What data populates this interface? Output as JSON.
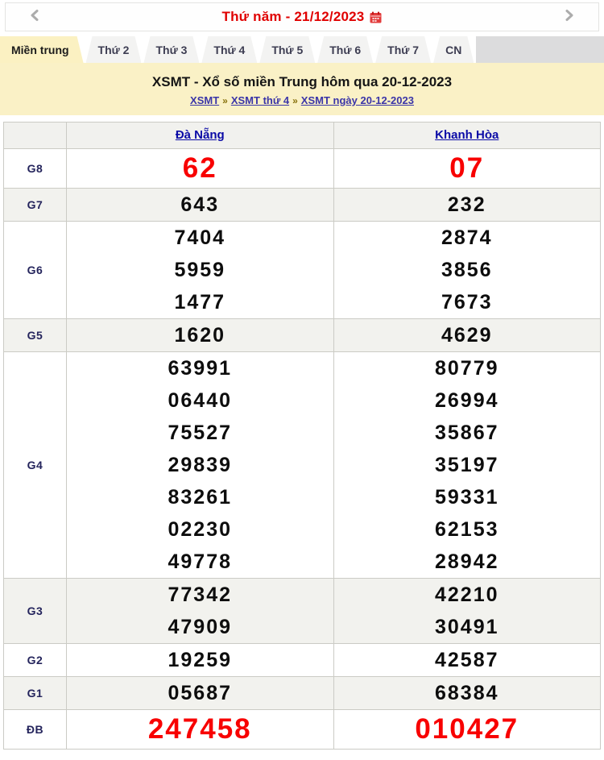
{
  "datebar": {
    "title": "Thứ năm - 21/12/2023",
    "icons": {
      "prev": "chevron-left-icon",
      "next": "chevron-right-icon",
      "calendar": "calendar-icon"
    }
  },
  "tabs": {
    "active": "Miền trung",
    "items": [
      "Thứ 2",
      "Thứ 3",
      "Thứ 4",
      "Thứ 5",
      "Thứ 6",
      "Thứ 7",
      "CN"
    ]
  },
  "header": {
    "title": "XSMT - Xổ số miền Trung hôm qua 20-12-2023",
    "breadcrumb": [
      "XSMT",
      "XSMT thứ 4",
      "XSMT ngày 20-12-2023"
    ],
    "separator": "»"
  },
  "results": {
    "columns": [
      "Đà Nẵng",
      "Khanh Hòa"
    ],
    "rows": [
      {
        "label": "G8",
        "highlight": true,
        "values": [
          [
            "62"
          ],
          [
            "07"
          ]
        ]
      },
      {
        "label": "G7",
        "highlight": false,
        "values": [
          [
            "643"
          ],
          [
            "232"
          ]
        ]
      },
      {
        "label": "G6",
        "highlight": false,
        "values": [
          [
            "7404",
            "5959",
            "1477"
          ],
          [
            "2874",
            "3856",
            "7673"
          ]
        ]
      },
      {
        "label": "G5",
        "highlight": false,
        "values": [
          [
            "1620"
          ],
          [
            "4629"
          ]
        ]
      },
      {
        "label": "G4",
        "highlight": false,
        "values": [
          [
            "63991",
            "06440",
            "75527",
            "29839",
            "83261",
            "02230",
            "49778"
          ],
          [
            "80779",
            "26994",
            "35867",
            "35197",
            "59331",
            "62153",
            "28942"
          ]
        ]
      },
      {
        "label": "G3",
        "highlight": false,
        "values": [
          [
            "77342",
            "47909"
          ],
          [
            "42210",
            "30491"
          ]
        ]
      },
      {
        "label": "G2",
        "highlight": false,
        "values": [
          [
            "19259"
          ],
          [
            "42587"
          ]
        ]
      },
      {
        "label": "G1",
        "highlight": false,
        "values": [
          [
            "05687"
          ],
          [
            "68384"
          ]
        ]
      },
      {
        "label": "ĐB",
        "highlight": true,
        "values": [
          [
            "247458"
          ],
          [
            "010427"
          ]
        ]
      }
    ]
  },
  "colors": {
    "accent_red": "#f80000",
    "date_red": "#e00000",
    "province_link_navy": "#0a0aa6",
    "breadcrumb_purple": "#3a35a8",
    "breadcrumb_sep_olive": "#86700a",
    "active_tab_yellow": "#fbf1c2",
    "header_yellow": "#faf1c6",
    "stripe_grey": "#f2f2ee",
    "tab_filler_grey": "#dcdcdd",
    "border_grey": "#c6c6c0"
  }
}
